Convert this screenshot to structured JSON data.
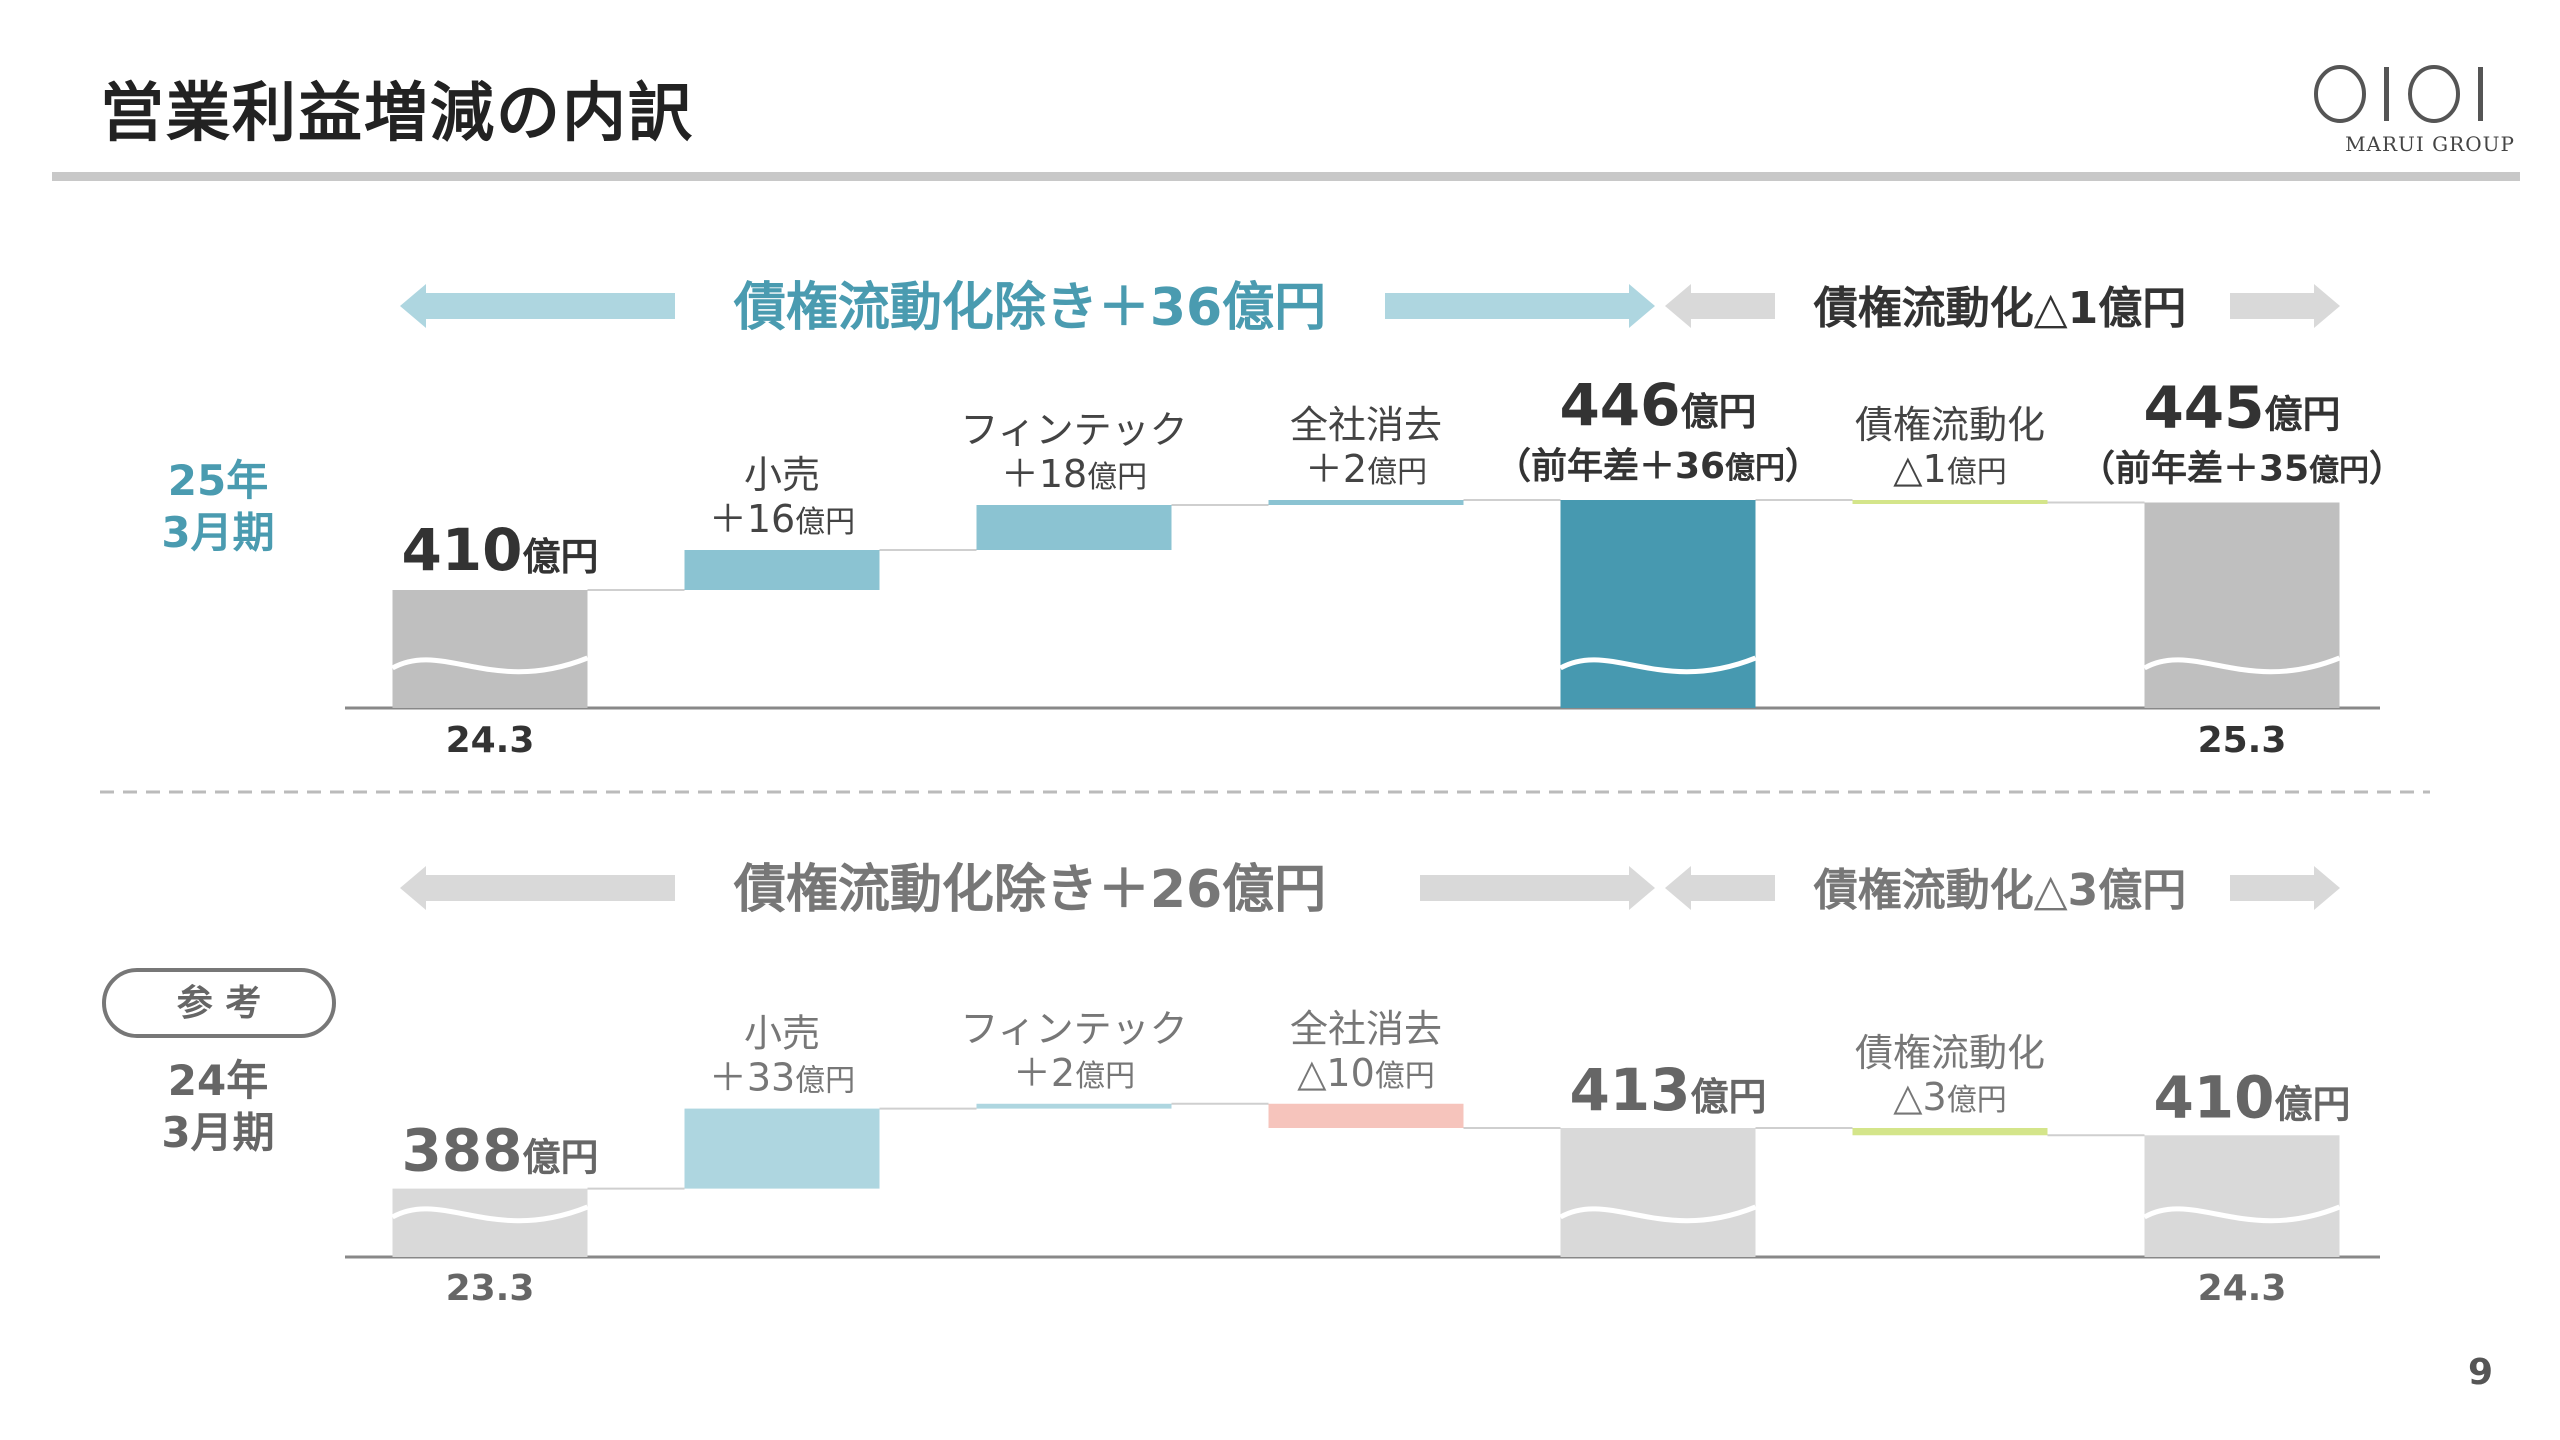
{
  "header": {
    "title": "営業利益増減の内訳",
    "logo_text": "MARUI GROUP"
  },
  "page_number": "9",
  "colors": {
    "accent_blue": "#4799b0",
    "light_blue": "#8bc3d2",
    "pale_blue": "#aed6e0",
    "gray": "#bfbfbf",
    "light_gray": "#d9d9d9",
    "pink": "#f6c4bc",
    "yellow_green": "#d4e58a",
    "title_teal": "#4a9bb0"
  },
  "chart_data": [
    {
      "type": "waterfall",
      "period_label": "25年\n3月期",
      "unit": "億円",
      "bars": [
        {
          "name": "24.3",
          "kind": "total",
          "value": 410,
          "label": "410",
          "axis_label": "24.3",
          "color": "#bfbfbf"
        },
        {
          "name": "小売",
          "kind": "delta",
          "value": 16,
          "label": "小売",
          "sub": "＋16億円",
          "color": "#8bc3d2"
        },
        {
          "name": "フィンテック",
          "kind": "delta",
          "value": 18,
          "label": "フィンテック",
          "sub": "＋18億円",
          "color": "#8bc3d2"
        },
        {
          "name": "全社消去",
          "kind": "delta",
          "value": 2,
          "label": "全社消去",
          "sub": "＋2億円",
          "color": "#8bc3d2"
        },
        {
          "name": "subtotal",
          "kind": "total",
          "value": 446,
          "label": "446",
          "sub": "（前年差＋36億円）",
          "color": "#4799b0"
        },
        {
          "name": "債権流動化",
          "kind": "delta",
          "value": -1,
          "label": "債権流動化",
          "sub": "△1億円",
          "color": "#d4e58a"
        },
        {
          "name": "25.3",
          "kind": "total",
          "value": 445,
          "label": "445",
          "sub": "（前年差＋35億円）",
          "axis_label": "25.3",
          "color": "#bfbfbf"
        }
      ],
      "brackets": [
        {
          "text": "債権流動化除き＋36億円",
          "highlight": true
        },
        {
          "text": "債権流動化△1億円",
          "highlight": false
        }
      ]
    },
    {
      "type": "waterfall",
      "badge": "参 考",
      "period_label": "24年\n3月期",
      "unit": "億円",
      "bars": [
        {
          "name": "23.3",
          "kind": "total",
          "value": 388,
          "label": "388",
          "axis_label": "23.3",
          "color": "#d9d9d9"
        },
        {
          "name": "小売",
          "kind": "delta",
          "value": 33,
          "label": "小売",
          "sub": "＋33億円",
          "color": "#aed6e0"
        },
        {
          "name": "フィンテック",
          "kind": "delta",
          "value": 2,
          "label": "フィンテック",
          "sub": "＋2億円",
          "color": "#aed6e0"
        },
        {
          "name": "全社消去",
          "kind": "delta",
          "value": -10,
          "label": "全社消去",
          "sub": "△10億円",
          "color": "#f6c4bc"
        },
        {
          "name": "subtotal",
          "kind": "total",
          "value": 413,
          "label": "413",
          "color": "#d9d9d9"
        },
        {
          "name": "債権流動化",
          "kind": "delta",
          "value": -3,
          "label": "債権流動化",
          "sub": "△3億円",
          "color": "#d4e58a"
        },
        {
          "name": "24.3",
          "kind": "total",
          "value": 410,
          "label": "410",
          "axis_label": "24.3",
          "color": "#d9d9d9"
        }
      ],
      "brackets": [
        {
          "text": "債権流動化除き＋26億円",
          "highlight": false
        },
        {
          "text": "債権流動化△3億円",
          "highlight": false
        }
      ]
    }
  ]
}
